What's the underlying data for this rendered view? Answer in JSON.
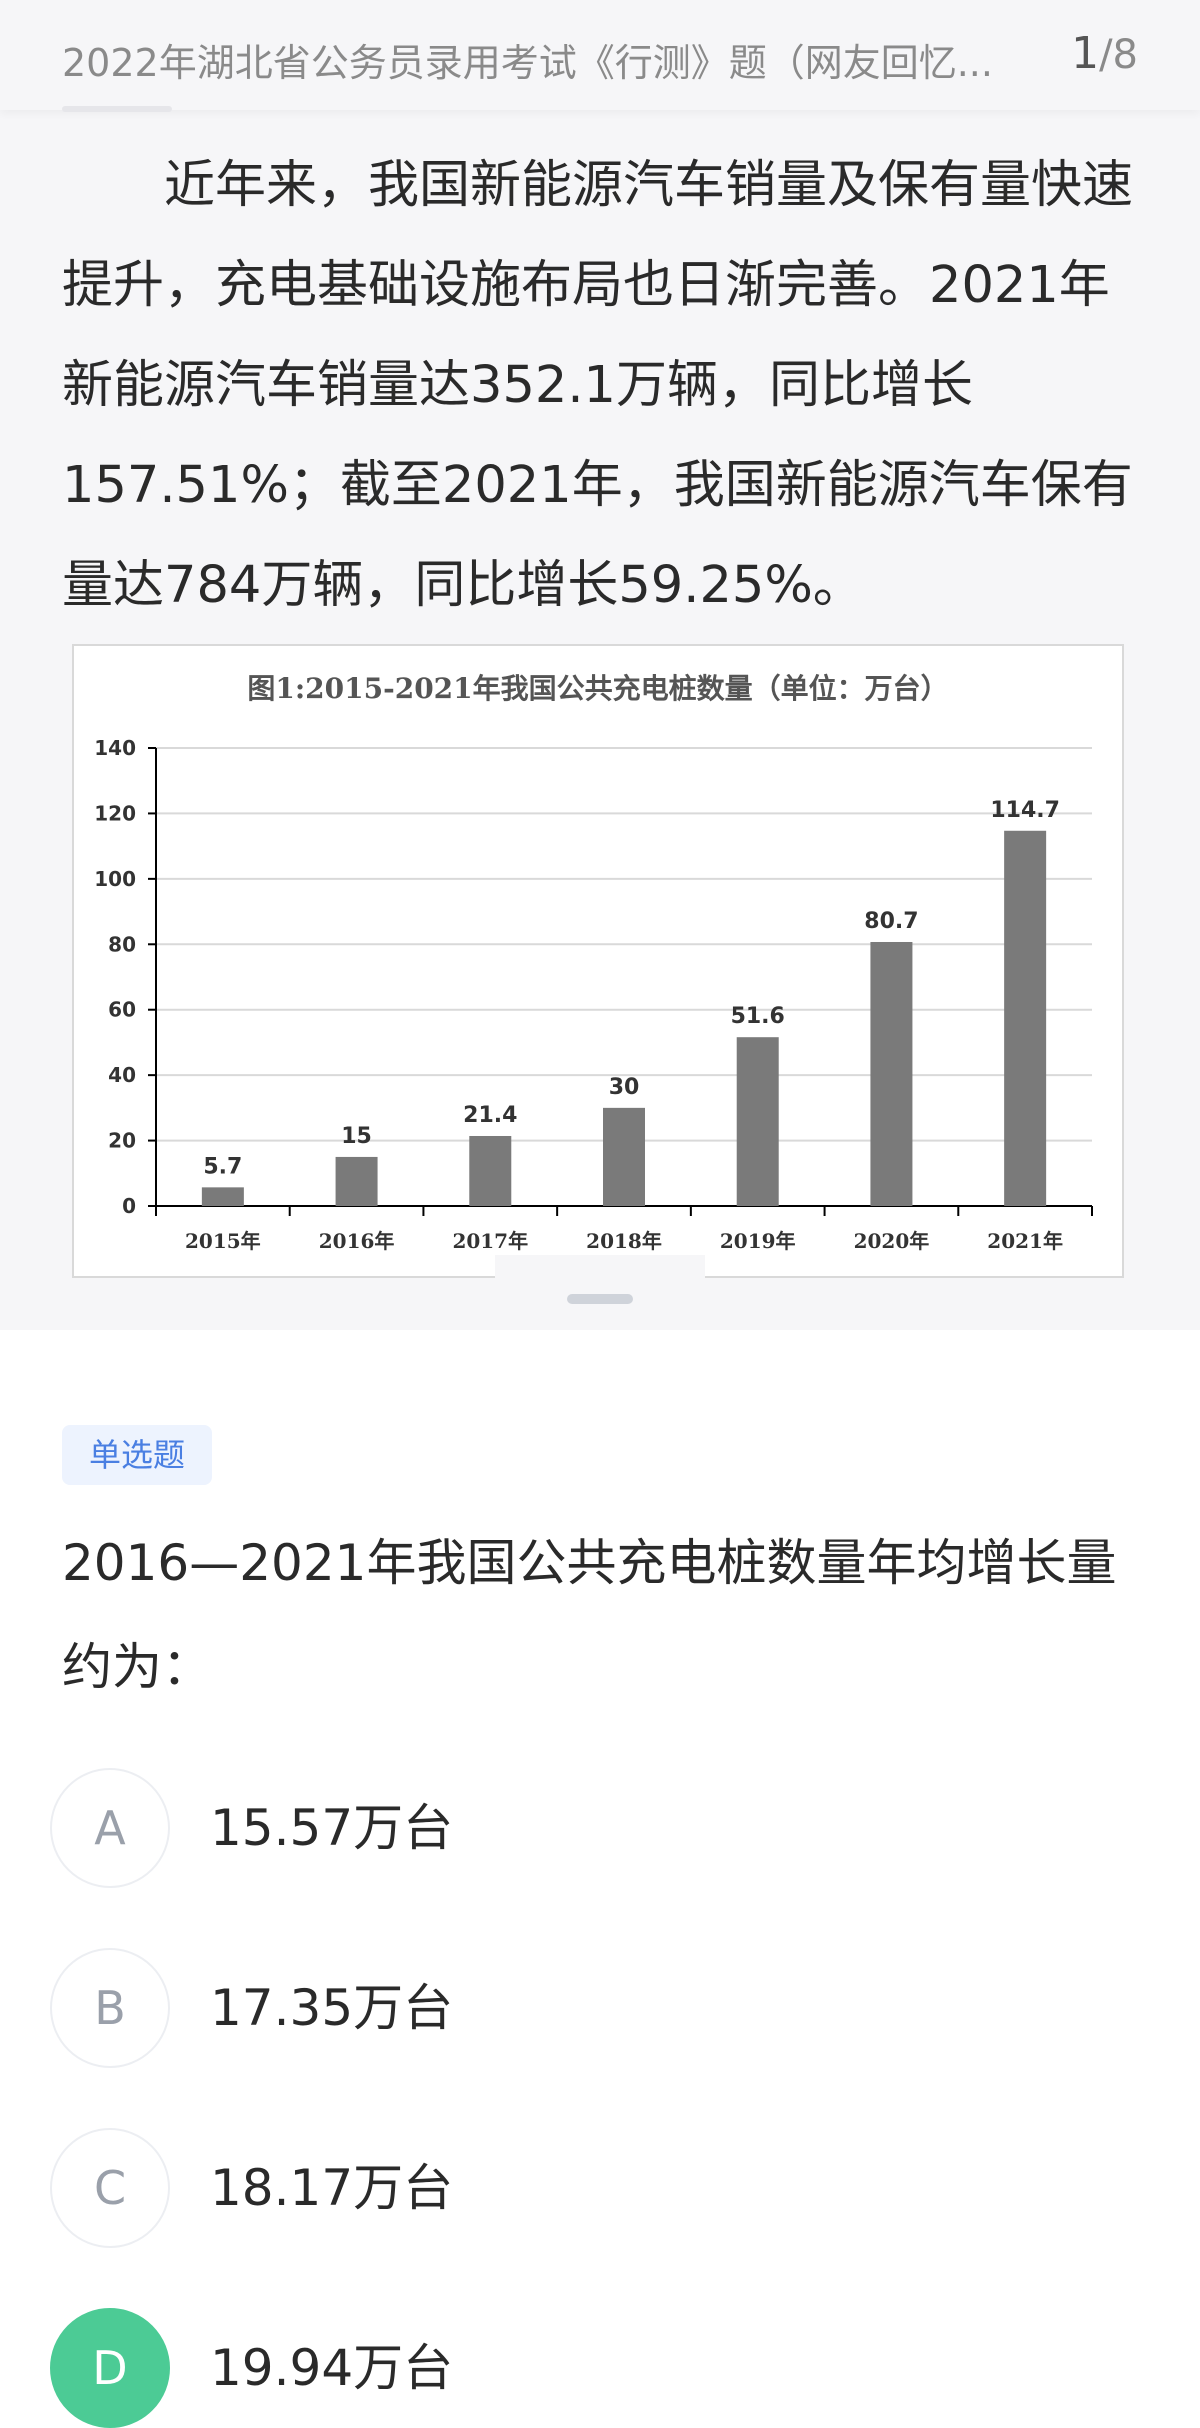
{
  "header": {
    "title": "2022年湖北省公务员录用考试《行测》题（网友回忆...",
    "page_current": "1",
    "page_total": "/8"
  },
  "passage": "近年来，我国新能源汽车销量及保有量快速提升，充电基础设施布局也日渐完善。2021年新能源汽车销量达352.1万辆，同比增长157.51%；截至2021年，我国新能源汽车保有量达784万辆，同比增长59.25%。",
  "chart_data": {
    "type": "bar",
    "title": "图1:2015-2021年我国公共充电桩数量（单位：万台）",
    "categories": [
      "2015年",
      "2016年",
      "2017年",
      "2018年",
      "2019年",
      "2020年",
      "2021年"
    ],
    "values": [
      5.7,
      15,
      21.4,
      30,
      51.6,
      80.7,
      114.7
    ],
    "data_labels": [
      "5.7",
      "15",
      "21.4",
      "30",
      "51.6",
      "80.7",
      "114.7"
    ],
    "ylim": [
      0,
      140
    ],
    "yticks": [
      0,
      20,
      40,
      60,
      80,
      100,
      120,
      140
    ],
    "bar_color": "#7a7a7a",
    "grid": true,
    "legend": "none"
  },
  "question": {
    "tag": "单选题",
    "text": "2016—2021年我国公共充电桩数量年均增长量约为：",
    "options": [
      {
        "letter": "A",
        "text": "15.57万台"
      },
      {
        "letter": "B",
        "text": "17.35万台"
      },
      {
        "letter": "C",
        "text": "18.17万台"
      },
      {
        "letter": "D",
        "text": "19.94万台"
      }
    ],
    "selected": "D"
  },
  "colors": {
    "accent_green": "#4ccb95",
    "tag_blue": "#4a7fe2"
  }
}
